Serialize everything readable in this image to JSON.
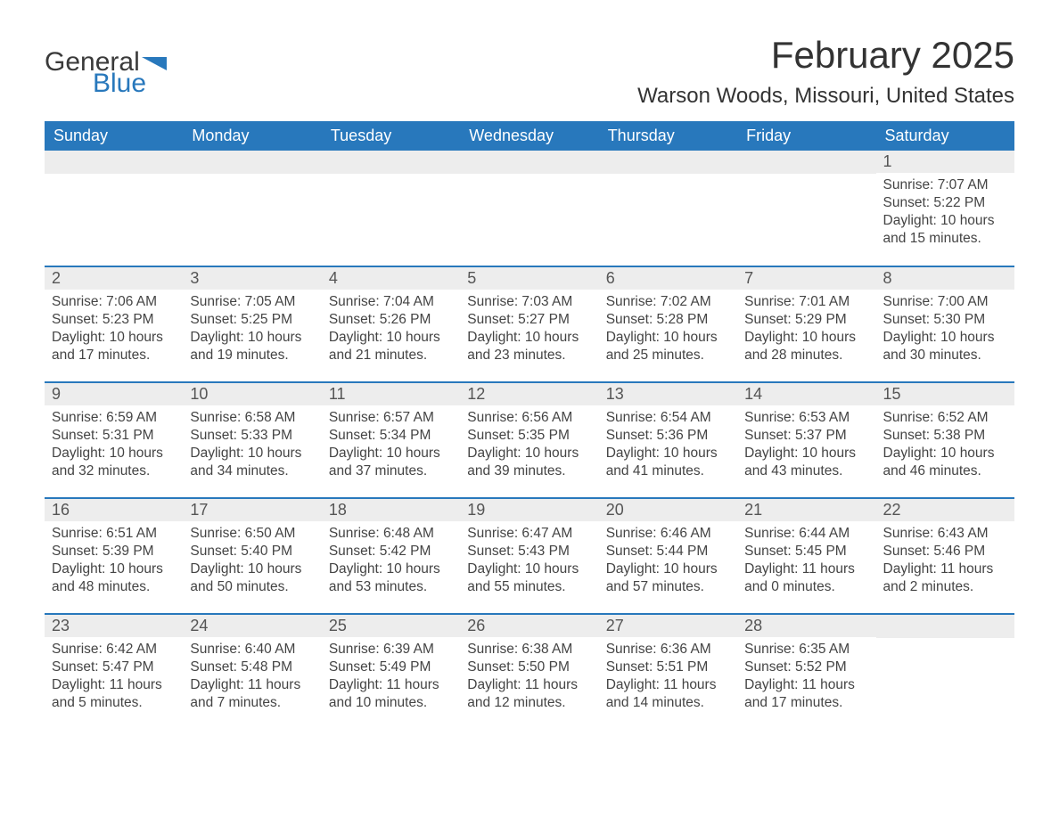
{
  "logo": {
    "word1": "General",
    "word2": "Blue"
  },
  "title": "February 2025",
  "location": "Warson Woods, Missouri, United States",
  "colors": {
    "header_bg": "#2878bc",
    "row_stripe": "#ededed",
    "text": "#444444",
    "border": "#2878bc"
  },
  "daysOfWeek": [
    "Sunday",
    "Monday",
    "Tuesday",
    "Wednesday",
    "Thursday",
    "Friday",
    "Saturday"
  ],
  "weeks": [
    [
      {
        "n": "",
        "sr": "",
        "ss": "",
        "dl": ""
      },
      {
        "n": "",
        "sr": "",
        "ss": "",
        "dl": ""
      },
      {
        "n": "",
        "sr": "",
        "ss": "",
        "dl": ""
      },
      {
        "n": "",
        "sr": "",
        "ss": "",
        "dl": ""
      },
      {
        "n": "",
        "sr": "",
        "ss": "",
        "dl": ""
      },
      {
        "n": "",
        "sr": "",
        "ss": "",
        "dl": ""
      },
      {
        "n": "1",
        "sr": "Sunrise: 7:07 AM",
        "ss": "Sunset: 5:22 PM",
        "dl": "Daylight: 10 hours and 15 minutes."
      }
    ],
    [
      {
        "n": "2",
        "sr": "Sunrise: 7:06 AM",
        "ss": "Sunset: 5:23 PM",
        "dl": "Daylight: 10 hours and 17 minutes."
      },
      {
        "n": "3",
        "sr": "Sunrise: 7:05 AM",
        "ss": "Sunset: 5:25 PM",
        "dl": "Daylight: 10 hours and 19 minutes."
      },
      {
        "n": "4",
        "sr": "Sunrise: 7:04 AM",
        "ss": "Sunset: 5:26 PM",
        "dl": "Daylight: 10 hours and 21 minutes."
      },
      {
        "n": "5",
        "sr": "Sunrise: 7:03 AM",
        "ss": "Sunset: 5:27 PM",
        "dl": "Daylight: 10 hours and 23 minutes."
      },
      {
        "n": "6",
        "sr": "Sunrise: 7:02 AM",
        "ss": "Sunset: 5:28 PM",
        "dl": "Daylight: 10 hours and 25 minutes."
      },
      {
        "n": "7",
        "sr": "Sunrise: 7:01 AM",
        "ss": "Sunset: 5:29 PM",
        "dl": "Daylight: 10 hours and 28 minutes."
      },
      {
        "n": "8",
        "sr": "Sunrise: 7:00 AM",
        "ss": "Sunset: 5:30 PM",
        "dl": "Daylight: 10 hours and 30 minutes."
      }
    ],
    [
      {
        "n": "9",
        "sr": "Sunrise: 6:59 AM",
        "ss": "Sunset: 5:31 PM",
        "dl": "Daylight: 10 hours and 32 minutes."
      },
      {
        "n": "10",
        "sr": "Sunrise: 6:58 AM",
        "ss": "Sunset: 5:33 PM",
        "dl": "Daylight: 10 hours and 34 minutes."
      },
      {
        "n": "11",
        "sr": "Sunrise: 6:57 AM",
        "ss": "Sunset: 5:34 PM",
        "dl": "Daylight: 10 hours and 37 minutes."
      },
      {
        "n": "12",
        "sr": "Sunrise: 6:56 AM",
        "ss": "Sunset: 5:35 PM",
        "dl": "Daylight: 10 hours and 39 minutes."
      },
      {
        "n": "13",
        "sr": "Sunrise: 6:54 AM",
        "ss": "Sunset: 5:36 PM",
        "dl": "Daylight: 10 hours and 41 minutes."
      },
      {
        "n": "14",
        "sr": "Sunrise: 6:53 AM",
        "ss": "Sunset: 5:37 PM",
        "dl": "Daylight: 10 hours and 43 minutes."
      },
      {
        "n": "15",
        "sr": "Sunrise: 6:52 AM",
        "ss": "Sunset: 5:38 PM",
        "dl": "Daylight: 10 hours and 46 minutes."
      }
    ],
    [
      {
        "n": "16",
        "sr": "Sunrise: 6:51 AM",
        "ss": "Sunset: 5:39 PM",
        "dl": "Daylight: 10 hours and 48 minutes."
      },
      {
        "n": "17",
        "sr": "Sunrise: 6:50 AM",
        "ss": "Sunset: 5:40 PM",
        "dl": "Daylight: 10 hours and 50 minutes."
      },
      {
        "n": "18",
        "sr": "Sunrise: 6:48 AM",
        "ss": "Sunset: 5:42 PM",
        "dl": "Daylight: 10 hours and 53 minutes."
      },
      {
        "n": "19",
        "sr": "Sunrise: 6:47 AM",
        "ss": "Sunset: 5:43 PM",
        "dl": "Daylight: 10 hours and 55 minutes."
      },
      {
        "n": "20",
        "sr": "Sunrise: 6:46 AM",
        "ss": "Sunset: 5:44 PM",
        "dl": "Daylight: 10 hours and 57 minutes."
      },
      {
        "n": "21",
        "sr": "Sunrise: 6:44 AM",
        "ss": "Sunset: 5:45 PM",
        "dl": "Daylight: 11 hours and 0 minutes."
      },
      {
        "n": "22",
        "sr": "Sunrise: 6:43 AM",
        "ss": "Sunset: 5:46 PM",
        "dl": "Daylight: 11 hours and 2 minutes."
      }
    ],
    [
      {
        "n": "23",
        "sr": "Sunrise: 6:42 AM",
        "ss": "Sunset: 5:47 PM",
        "dl": "Daylight: 11 hours and 5 minutes."
      },
      {
        "n": "24",
        "sr": "Sunrise: 6:40 AM",
        "ss": "Sunset: 5:48 PM",
        "dl": "Daylight: 11 hours and 7 minutes."
      },
      {
        "n": "25",
        "sr": "Sunrise: 6:39 AM",
        "ss": "Sunset: 5:49 PM",
        "dl": "Daylight: 11 hours and 10 minutes."
      },
      {
        "n": "26",
        "sr": "Sunrise: 6:38 AM",
        "ss": "Sunset: 5:50 PM",
        "dl": "Daylight: 11 hours and 12 minutes."
      },
      {
        "n": "27",
        "sr": "Sunrise: 6:36 AM",
        "ss": "Sunset: 5:51 PM",
        "dl": "Daylight: 11 hours and 14 minutes."
      },
      {
        "n": "28",
        "sr": "Sunrise: 6:35 AM",
        "ss": "Sunset: 5:52 PM",
        "dl": "Daylight: 11 hours and 17 minutes."
      },
      {
        "n": "",
        "sr": "",
        "ss": "",
        "dl": ""
      }
    ]
  ]
}
